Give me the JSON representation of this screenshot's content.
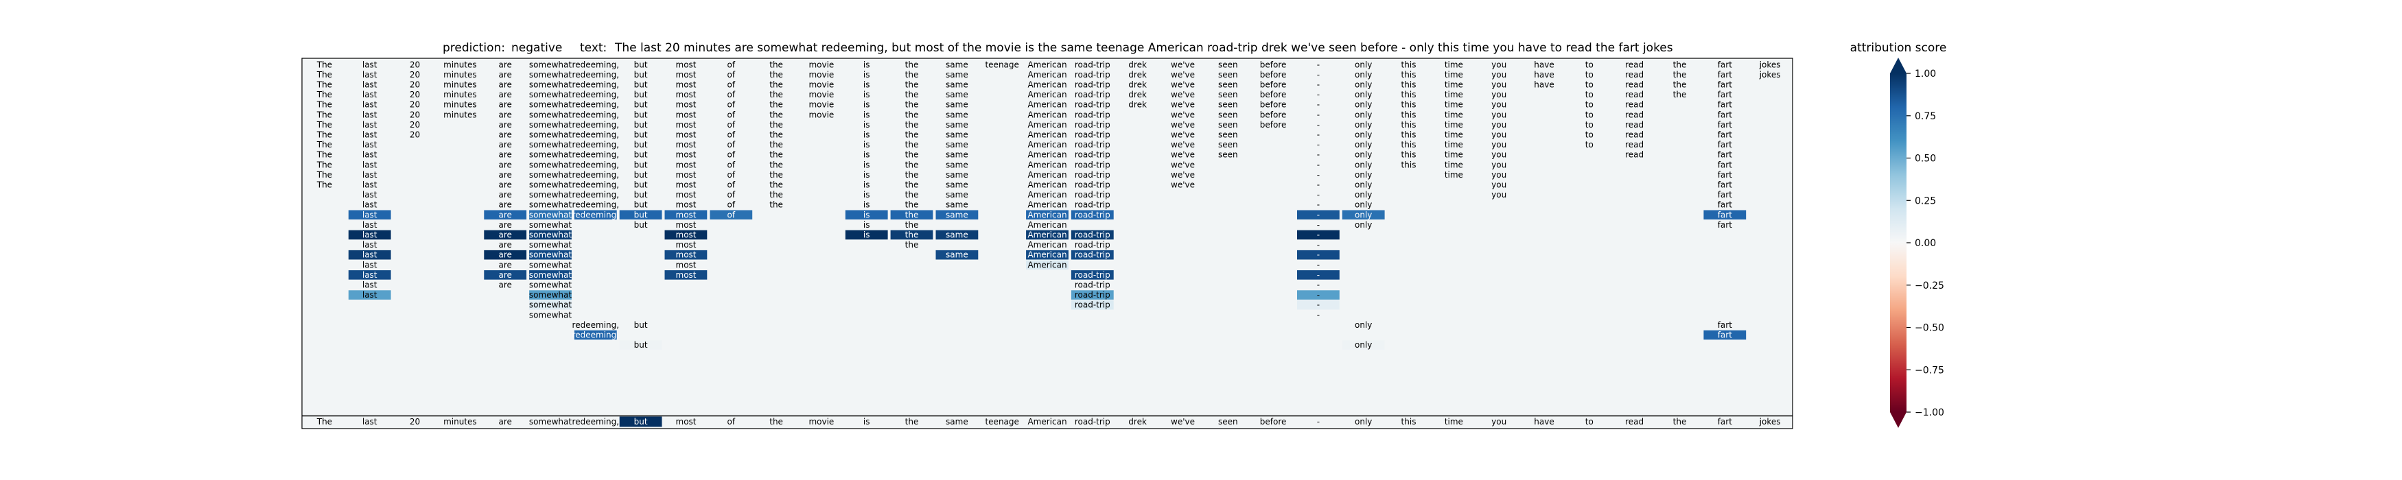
{
  "header": {
    "prediction_label": "prediction:",
    "prediction_value": "negative",
    "text_label": "text:",
    "text_value": "The last 20 minutes are somewhat redeeming, but most of the movie is the same teenage American road-trip drek we've seen before - only this time you have to read the fart jokes"
  },
  "chart_data": {
    "type": "heatmap",
    "columns": [
      "The",
      "last",
      "20",
      "minutes",
      "are",
      "somewhat",
      "redeeming,",
      "but",
      "most",
      "of",
      "the",
      "movie",
      "is",
      "the",
      "same",
      "teenage",
      "American",
      "road-trip",
      "drek",
      "we've",
      "seen",
      "before",
      "-",
      "only",
      "this",
      "time",
      "you",
      "have",
      "to",
      "read",
      "the",
      "fart",
      "jokes"
    ],
    "rows": [
      {
        "present": [
          0,
          1,
          2,
          3,
          4,
          5,
          6,
          7,
          8,
          9,
          10,
          11,
          12,
          13,
          14,
          15,
          16,
          17,
          18,
          19,
          20,
          21,
          22,
          23,
          24,
          25,
          26,
          27,
          28,
          29,
          30,
          31,
          32
        ],
        "scores": {}
      },
      {
        "present": [
          0,
          1,
          2,
          3,
          4,
          5,
          6,
          7,
          8,
          9,
          10,
          11,
          12,
          13,
          14,
          16,
          17,
          18,
          19,
          20,
          21,
          22,
          23,
          24,
          25,
          26,
          27,
          28,
          29,
          30,
          31,
          32
        ],
        "scores": {}
      },
      {
        "present": [
          0,
          1,
          2,
          3,
          4,
          5,
          6,
          7,
          8,
          9,
          10,
          11,
          12,
          13,
          14,
          16,
          17,
          18,
          19,
          20,
          21,
          22,
          23,
          24,
          25,
          26,
          27,
          28,
          29,
          30,
          31
        ],
        "scores": {}
      },
      {
        "present": [
          0,
          1,
          2,
          3,
          4,
          5,
          6,
          7,
          8,
          9,
          10,
          11,
          12,
          13,
          14,
          16,
          17,
          18,
          19,
          20,
          21,
          22,
          23,
          24,
          25,
          26,
          28,
          29,
          30,
          31
        ],
        "scores": {}
      },
      {
        "present": [
          0,
          1,
          2,
          3,
          4,
          5,
          6,
          7,
          8,
          9,
          10,
          11,
          12,
          13,
          14,
          16,
          17,
          18,
          19,
          20,
          21,
          22,
          23,
          24,
          25,
          26,
          28,
          29,
          31
        ],
        "scores": {}
      },
      {
        "present": [
          0,
          1,
          2,
          3,
          4,
          5,
          6,
          7,
          8,
          9,
          10,
          11,
          12,
          13,
          14,
          16,
          17,
          19,
          20,
          21,
          22,
          23,
          24,
          25,
          26,
          28,
          29,
          31
        ],
        "scores": {}
      },
      {
        "present": [
          0,
          1,
          2,
          4,
          5,
          6,
          7,
          8,
          9,
          10,
          12,
          13,
          14,
          16,
          17,
          19,
          20,
          21,
          22,
          23,
          24,
          25,
          26,
          28,
          29,
          31
        ],
        "scores": {}
      },
      {
        "present": [
          0,
          1,
          2,
          4,
          5,
          6,
          7,
          8,
          9,
          10,
          12,
          13,
          14,
          16,
          17,
          19,
          20,
          22,
          23,
          24,
          25,
          26,
          28,
          29,
          31
        ],
        "scores": {}
      },
      {
        "present": [
          0,
          1,
          4,
          5,
          6,
          7,
          8,
          9,
          10,
          12,
          13,
          14,
          16,
          17,
          19,
          20,
          22,
          23,
          24,
          25,
          26,
          28,
          29,
          31
        ],
        "scores": {}
      },
      {
        "present": [
          0,
          1,
          4,
          5,
          6,
          7,
          8,
          9,
          10,
          12,
          13,
          14,
          16,
          17,
          19,
          20,
          22,
          23,
          24,
          25,
          26,
          29,
          31
        ],
        "scores": {}
      },
      {
        "present": [
          0,
          1,
          4,
          5,
          6,
          7,
          8,
          9,
          10,
          12,
          13,
          14,
          16,
          17,
          19,
          22,
          23,
          24,
          25,
          26,
          31
        ],
        "scores": {}
      },
      {
        "present": [
          0,
          1,
          4,
          5,
          6,
          7,
          8,
          9,
          10,
          12,
          13,
          14,
          16,
          17,
          19,
          22,
          23,
          25,
          26,
          31
        ],
        "scores": {}
      },
      {
        "present": [
          0,
          1,
          4,
          5,
          6,
          7,
          8,
          9,
          10,
          12,
          13,
          14,
          16,
          17,
          19,
          22,
          23,
          26,
          31
        ],
        "scores": {}
      },
      {
        "present": [
          1,
          4,
          5,
          6,
          7,
          8,
          9,
          10,
          12,
          13,
          14,
          16,
          17,
          22,
          23,
          26,
          31
        ],
        "scores": {}
      },
      {
        "present": [
          1,
          4,
          5,
          6,
          7,
          8,
          9,
          10,
          12,
          13,
          14,
          16,
          17,
          22,
          23,
          31
        ],
        "scores": {}
      },
      {
        "present": [
          1,
          4,
          5,
          6,
          7,
          8,
          9,
          12,
          13,
          14,
          16,
          17,
          22,
          23,
          31
        ],
        "scores": {
          "1": 0.8,
          "4": 0.8,
          "5": 0.75,
          "6": 0.8,
          "7": 0.8,
          "8": 0.8,
          "9": 0.75,
          "12": 0.8,
          "13": 0.8,
          "14": 0.8,
          "16": 0.8,
          "17": 0.8,
          "22": 0.85,
          "23": 0.75,
          "31": 0.8
        }
      },
      {
        "present": [
          1,
          4,
          5,
          7,
          8,
          12,
          13,
          16,
          22,
          23,
          31
        ],
        "scores": {}
      },
      {
        "present": [
          1,
          4,
          5,
          8,
          12,
          13,
          14,
          16,
          17,
          22
        ],
        "scores": {
          "1": 1.0,
          "4": 1.0,
          "5": 0.95,
          "8": 1.0,
          "12": 1.0,
          "13": 0.95,
          "14": 0.95,
          "16": 0.95,
          "17": 0.95,
          "22": 1.0
        }
      },
      {
        "present": [
          1,
          4,
          5,
          8,
          13,
          16,
          17,
          22
        ],
        "scores": {}
      },
      {
        "present": [
          1,
          4,
          5,
          8,
          14,
          16,
          17,
          22
        ],
        "scores": {
          "1": 0.95,
          "4": 1.0,
          "5": 0.9,
          "8": 0.9,
          "14": 0.9,
          "16": 0.9,
          "17": 0.9,
          "22": 0.9
        }
      },
      {
        "present": [
          1,
          4,
          5,
          8,
          16,
          22
        ],
        "scores": {
          "16": 0.15
        }
      },
      {
        "present": [
          1,
          4,
          5,
          8,
          17,
          22
        ],
        "scores": {
          "1": 0.9,
          "4": 0.9,
          "5": 0.9,
          "8": 0.9,
          "17": 0.9,
          "22": 0.9
        }
      },
      {
        "present": [
          1,
          4,
          5,
          17,
          22
        ],
        "scores": {}
      },
      {
        "present": [
          1,
          5,
          17,
          22
        ],
        "scores": {
          "1": 0.55,
          "5": 0.55,
          "17": 0.55,
          "22": 0.55
        }
      },
      {
        "present": [
          5,
          17,
          22
        ],
        "scores": {
          "5": 0.12,
          "17": 0.15,
          "22": 0.1
        }
      },
      {
        "present": [
          5,
          22
        ],
        "scores": {}
      },
      {
        "present": [
          6,
          7,
          23,
          31
        ],
        "scores": {}
      },
      {
        "present": [
          6,
          31
        ],
        "scores": {
          "6": 0.8,
          "31": 0.8
        }
      },
      {
        "present": [
          7,
          23
        ],
        "scores": {
          "7": 0.05,
          "23": 0.05
        }
      }
    ],
    "summary_row": {
      "scores": {
        "7": 1.0
      }
    },
    "colorbar": {
      "label": "attribution score",
      "min": -1.0,
      "max": 1.0,
      "ticks": [
        "1.00",
        "0.75",
        "0.50",
        "0.25",
        "0.00",
        "−0.25",
        "−0.50",
        "−0.75",
        "−1.00"
      ],
      "tick_values": [
        1.0,
        0.75,
        0.5,
        0.25,
        0.0,
        -0.25,
        -0.5,
        -0.75,
        -1.0
      ],
      "colormap": "RdBu"
    }
  }
}
